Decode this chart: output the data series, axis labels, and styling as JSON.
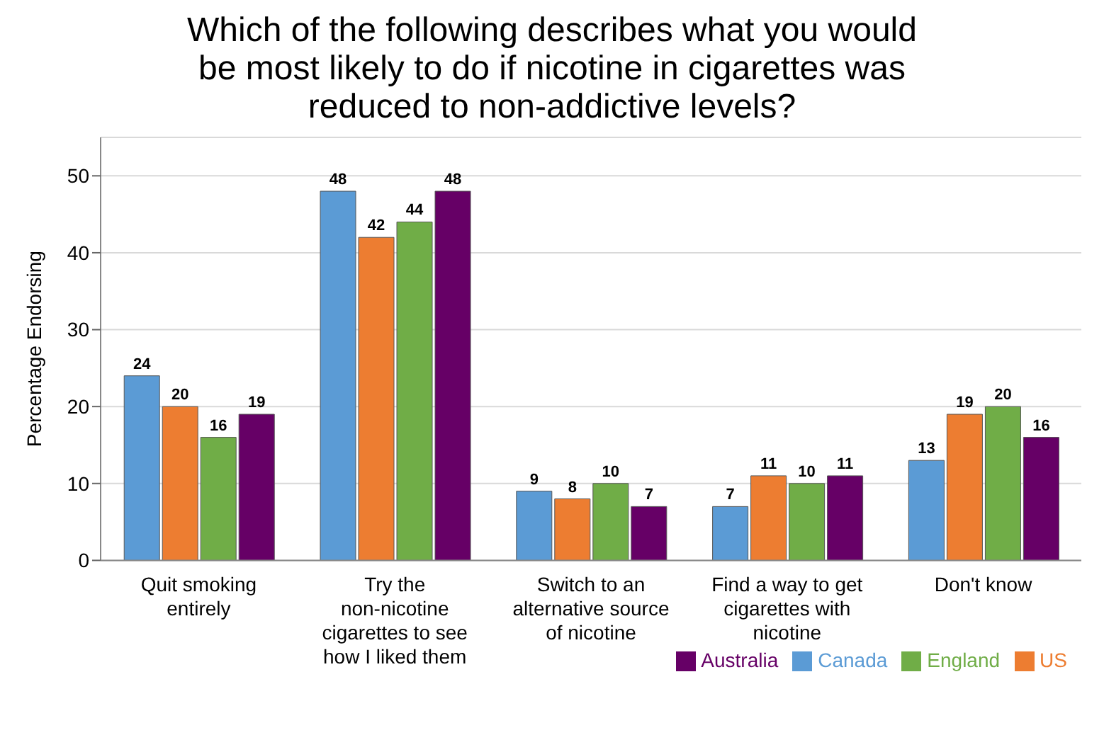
{
  "chart_data": {
    "type": "bar",
    "title": "Which of the following describes what you would be most likely to do if nicotine in cigarettes was reduced to non-addictive levels?",
    "ylabel": "Percentage Endorsing",
    "categories": [
      "Quit smoking entirely",
      "Try the non-nicotine cigarettes to see how I liked them",
      "Switch to an alternative source of nicotine",
      "Find a way to get cigarettes with nicotine",
      "Don't know"
    ],
    "series": [
      {
        "name": "Canada",
        "color": "#5b9bd5",
        "values": [
          24,
          48,
          9,
          7,
          13
        ]
      },
      {
        "name": "US",
        "color": "#ed7d31",
        "values": [
          20,
          42,
          8,
          11,
          19
        ]
      },
      {
        "name": "England",
        "color": "#70ad47",
        "values": [
          16,
          44,
          10,
          10,
          20
        ]
      },
      {
        "name": "Australia",
        "color": "#660066",
        "values": [
          19,
          48,
          7,
          11,
          16
        ]
      }
    ],
    "ylim": [
      0,
      55
    ],
    "yticks": [
      0,
      10,
      20,
      30,
      40,
      50
    ],
    "grid": "y",
    "legend": "bottom right",
    "data_labels": true
  }
}
